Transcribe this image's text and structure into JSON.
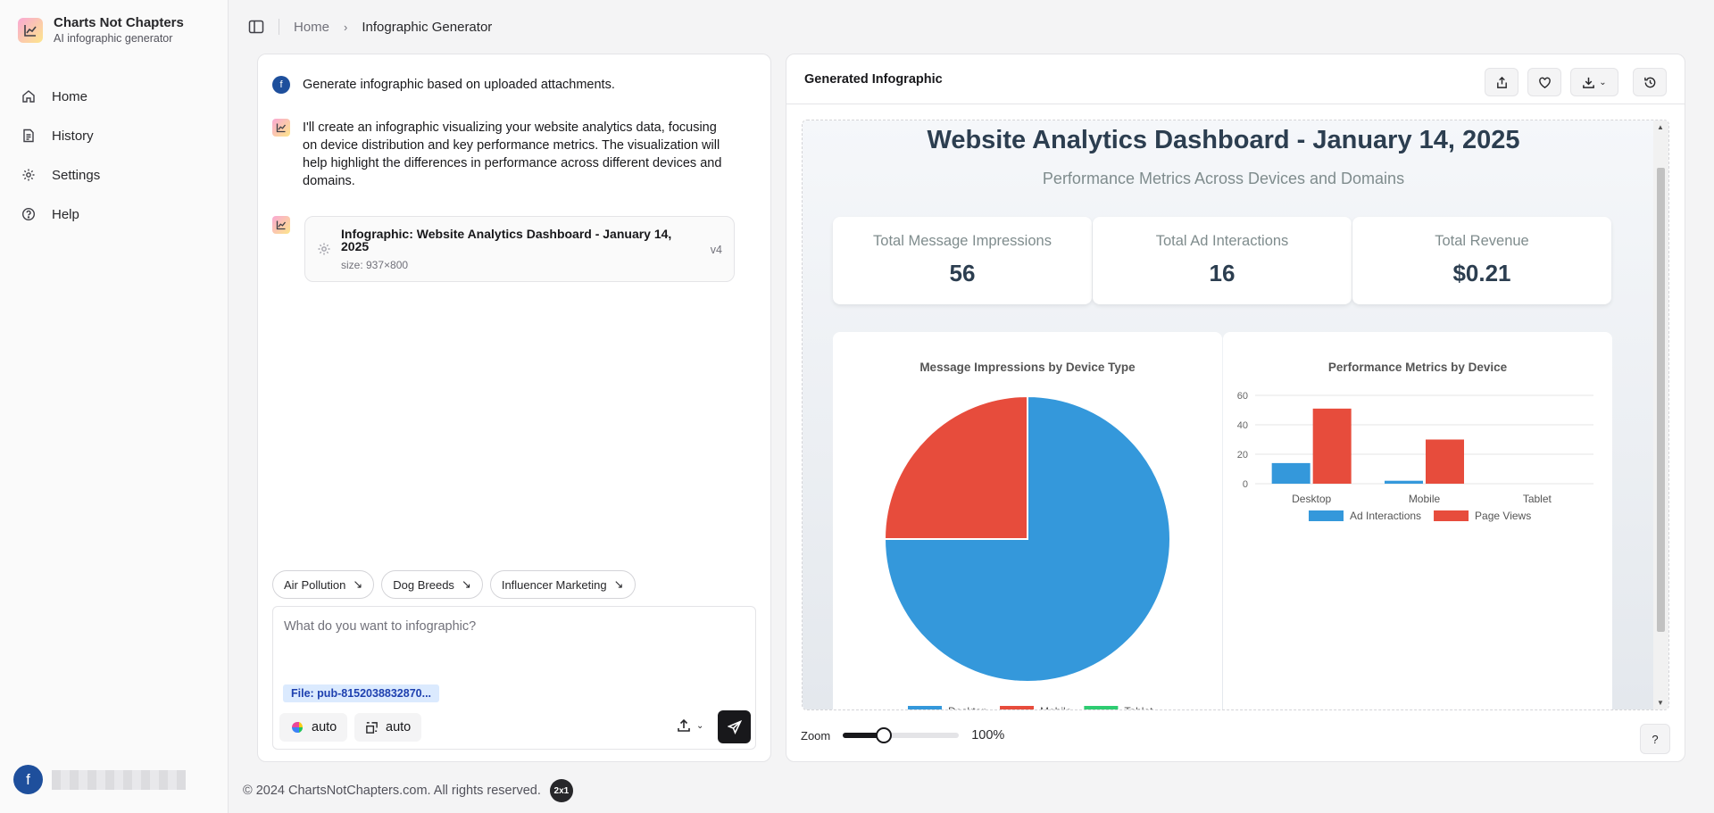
{
  "app": {
    "name": "Charts Not Chapters",
    "tagline": "AI infographic generator"
  },
  "nav": [
    {
      "label": "Home",
      "icon": "home-icon"
    },
    {
      "label": "History",
      "icon": "document-icon"
    },
    {
      "label": "Settings",
      "icon": "gear-icon"
    },
    {
      "label": "Help",
      "icon": "help-circle-icon"
    }
  ],
  "user": {
    "initial": "f"
  },
  "breadcrumb": {
    "home": "Home",
    "current": "Infographic Generator"
  },
  "chat": {
    "user_message": "Generate infographic based on uploaded attachments.",
    "bot_message": "I'll create an infographic visualizing your website analytics data, focusing on device distribution and key performance metrics. The visualization will help highlight the differences in performance across different devices and domains.",
    "artifact": {
      "title": "Infographic: Website Analytics Dashboard - January 14, 2025",
      "size": "size: 937×800",
      "version": "v4"
    },
    "suggestions": [
      "Air Pollution",
      "Dog Breeds",
      "Influencer Marketing"
    ],
    "composer": {
      "placeholder": "What do you want to infographic?",
      "value": "",
      "file": "File: pub-8152038832870...",
      "model_label": "auto",
      "layout_label": "auto"
    }
  },
  "viewer": {
    "title": "Generated Infographic",
    "zoom_label": "Zoom",
    "zoom_value": "100%",
    "zoom_fraction": 0.35,
    "help_label": "?"
  },
  "infographic": {
    "title": "Website Analytics Dashboard - January 14, 2025",
    "subtitle": "Performance Metrics Across Devices and Domains",
    "kpis": [
      {
        "label": "Total Message Impressions",
        "value": "56"
      },
      {
        "label": "Total Ad Interactions",
        "value": "16"
      },
      {
        "label": "Total Revenue",
        "value": "$0.21"
      }
    ]
  },
  "chart_data": [
    {
      "type": "pie",
      "title": "Message Impressions by Device Type",
      "categories": [
        "Desktop",
        "Mobile",
        "Tablet"
      ],
      "values": [
        42,
        14,
        0
      ],
      "colors": [
        "#3498db",
        "#e74c3c",
        "#2ecc71"
      ],
      "legend": "bottom"
    },
    {
      "type": "bar",
      "title": "Performance Metrics by Device",
      "categories": [
        "Desktop",
        "Mobile",
        "Tablet"
      ],
      "series": [
        {
          "name": "Ad Interactions",
          "values": [
            14,
            2,
            0
          ],
          "color": "#3498db"
        },
        {
          "name": "Page Views",
          "values": [
            51,
            30,
            0
          ],
          "color": "#e74c3c"
        }
      ],
      "yticks": [
        0,
        20,
        40,
        60
      ],
      "ylim": [
        0,
        60
      ],
      "grid": true,
      "legend": "bottom"
    }
  ],
  "footer": {
    "copyright": "© 2024 ChartsNotChapters.com. All rights reserved.",
    "badge": "2x1"
  }
}
